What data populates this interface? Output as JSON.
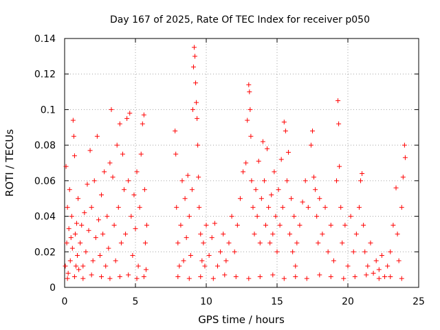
{
  "chart_data": {
    "type": "scatter",
    "title": "Day 167 of 2025, Rate Of TEC Index for receiver p050",
    "xlabel": "GPS time / hours",
    "ylabel": "ROTI / TECUs",
    "xlim": [
      0,
      25
    ],
    "ylim": [
      0,
      0.14
    ],
    "xticks": [
      0,
      5,
      10,
      15,
      20,
      25
    ],
    "xtick_labels": [
      "0",
      "5",
      "10",
      "15",
      "20",
      "25"
    ],
    "yticks": [
      0,
      0.02,
      0.04,
      0.06,
      0.08,
      0.1,
      0.12,
      0.14
    ],
    "ytick_labels": [
      "0",
      "0.02",
      "0.04",
      "0.06",
      "0.08",
      "0.1",
      "0.12",
      "0.14"
    ],
    "grid": true,
    "legend": "none",
    "marker": "+",
    "series": [
      {
        "color": "#ff0000",
        "points": [
          [
            0.05,
            0.012
          ],
          [
            0.1,
            0.068
          ],
          [
            0.15,
            0.025
          ],
          [
            0.2,
            0.045
          ],
          [
            0.25,
            0.008
          ],
          [
            0.3,
            0.033
          ],
          [
            0.35,
            0.055
          ],
          [
            0.4,
            0.015
          ],
          [
            0.45,
            0.028
          ],
          [
            0.5,
            0.04
          ],
          [
            0.55,
            0.022
          ],
          [
            0.6,
            0.094
          ],
          [
            0.65,
            0.085
          ],
          [
            0.7,
            0.074
          ],
          [
            0.75,
            0.03
          ],
          [
            0.8,
            0.012
          ],
          [
            0.85,
            0.036
          ],
          [
            0.9,
            0.018
          ],
          [
            0.95,
            0.05
          ],
          [
            1.0,
            0.01
          ],
          [
            1.1,
            0.025
          ],
          [
            1.2,
            0.035
          ],
          [
            1.3,
            0.012
          ],
          [
            1.4,
            0.042
          ],
          [
            1.5,
            0.02
          ],
          [
            1.6,
            0.058
          ],
          [
            1.7,
            0.032
          ],
          [
            1.8,
            0.077
          ],
          [
            1.9,
            0.045
          ],
          [
            2.0,
            0.015
          ],
          [
            2.1,
            0.06
          ],
          [
            2.2,
            0.028
          ],
          [
            2.3,
            0.085
          ],
          [
            2.4,
            0.038
          ],
          [
            2.5,
            0.018
          ],
          [
            2.6,
            0.052
          ],
          [
            2.7,
            0.03
          ],
          [
            2.8,
            0.065
          ],
          [
            2.9,
            0.012
          ],
          [
            3.0,
            0.04
          ],
          [
            3.1,
            0.022
          ],
          [
            3.2,
            0.07
          ],
          [
            3.3,
            0.1
          ],
          [
            3.4,
            0.062
          ],
          [
            3.5,
            0.035
          ],
          [
            3.6,
            0.015
          ],
          [
            3.7,
            0.08
          ],
          [
            3.8,
            0.045
          ],
          [
            3.9,
            0.092
          ],
          [
            4.0,
            0.025
          ],
          [
            4.1,
            0.075
          ],
          [
            4.2,
            0.055
          ],
          [
            4.3,
            0.03
          ],
          [
            4.4,
            0.095
          ],
          [
            4.5,
            0.06
          ],
          [
            4.6,
            0.098
          ],
          [
            4.7,
            0.04
          ],
          [
            4.8,
            0.018
          ],
          [
            4.9,
            0.052
          ],
          [
            5.0,
            0.033
          ],
          [
            5.1,
            0.065
          ],
          [
            5.2,
            0.012
          ],
          [
            5.3,
            0.045
          ],
          [
            5.4,
            0.075
          ],
          [
            5.5,
            0.092
          ],
          [
            5.6,
            0.097
          ],
          [
            5.65,
            0.055
          ],
          [
            5.7,
            0.025
          ],
          [
            5.75,
            0.01
          ],
          [
            5.8,
            0.035
          ],
          [
            0.2,
            0.005
          ],
          [
            0.7,
            0.006
          ],
          [
            1.3,
            0.005
          ],
          [
            1.9,
            0.007
          ],
          [
            2.6,
            0.006
          ],
          [
            3.2,
            0.005
          ],
          [
            3.9,
            0.006
          ],
          [
            4.5,
            0.007
          ],
          [
            5.1,
            0.005
          ],
          [
            5.6,
            0.006
          ],
          [
            7.8,
            0.088
          ],
          [
            7.85,
            0.075
          ],
          [
            7.9,
            0.045
          ],
          [
            8.0,
            0.025
          ],
          [
            8.1,
            0.012
          ],
          [
            8.2,
            0.035
          ],
          [
            8.3,
            0.06
          ],
          [
            8.4,
            0.015
          ],
          [
            8.5,
            0.05
          ],
          [
            8.6,
            0.028
          ],
          [
            8.7,
            0.063
          ],
          [
            8.8,
            0.04
          ],
          [
            8.9,
            0.018
          ],
          [
            9.0,
            0.055
          ],
          [
            9.05,
            0.1
          ],
          [
            9.1,
            0.124
          ],
          [
            9.15,
            0.135
          ],
          [
            9.2,
            0.13
          ],
          [
            9.25,
            0.115
          ],
          [
            9.3,
            0.104
          ],
          [
            9.35,
            0.095
          ],
          [
            9.4,
            0.08
          ],
          [
            9.45,
            0.062
          ],
          [
            9.5,
            0.045
          ],
          [
            9.6,
            0.03
          ],
          [
            9.7,
            0.015
          ],
          [
            9.8,
            0.025
          ],
          [
            9.9,
            0.012
          ],
          [
            10.0,
            0.035
          ],
          [
            10.2,
            0.018
          ],
          [
            10.4,
            0.028
          ],
          [
            10.6,
            0.036
          ],
          [
            10.8,
            0.012
          ],
          [
            11.0,
            0.02
          ],
          [
            11.2,
            0.03
          ],
          [
            11.4,
            0.015
          ],
          [
            11.6,
            0.025
          ],
          [
            11.8,
            0.04
          ],
          [
            12.0,
            0.02
          ],
          [
            12.2,
            0.035
          ],
          [
            12.4,
            0.05
          ],
          [
            12.6,
            0.065
          ],
          [
            12.8,
            0.07
          ],
          [
            12.9,
            0.094
          ],
          [
            13.0,
            0.114
          ],
          [
            13.05,
            0.11
          ],
          [
            13.1,
            0.1
          ],
          [
            13.15,
            0.085
          ],
          [
            13.2,
            0.06
          ],
          [
            13.3,
            0.045
          ],
          [
            13.4,
            0.03
          ],
          [
            13.5,
            0.055
          ],
          [
            13.6,
            0.04
          ],
          [
            13.7,
            0.071
          ],
          [
            13.8,
            0.025
          ],
          [
            13.9,
            0.05
          ],
          [
            14.0,
            0.082
          ],
          [
            14.1,
            0.06
          ],
          [
            14.2,
            0.035
          ],
          [
            14.3,
            0.078
          ],
          [
            14.4,
            0.045
          ],
          [
            14.5,
            0.025
          ],
          [
            14.6,
            0.052
          ],
          [
            14.7,
            0.03
          ],
          [
            14.8,
            0.065
          ],
          [
            14.9,
            0.04
          ],
          [
            15.0,
            0.02
          ],
          [
            15.1,
            0.055
          ],
          [
            15.2,
            0.035
          ],
          [
            15.3,
            0.072
          ],
          [
            15.4,
            0.045
          ],
          [
            15.5,
            0.093
          ],
          [
            15.6,
            0.088
          ],
          [
            15.7,
            0.06
          ],
          [
            15.8,
            0.076
          ],
          [
            15.9,
            0.03
          ],
          [
            16.0,
            0.05
          ],
          [
            16.1,
            0.02
          ],
          [
            16.2,
            0.04
          ],
          [
            16.3,
            0.012
          ],
          [
            16.4,
            0.025
          ],
          [
            16.6,
            0.035
          ],
          [
            16.8,
            0.048
          ],
          [
            17.0,
            0.06
          ],
          [
            17.2,
            0.045
          ],
          [
            17.4,
            0.08
          ],
          [
            17.5,
            0.088
          ],
          [
            17.6,
            0.062
          ],
          [
            17.7,
            0.055
          ],
          [
            17.8,
            0.04
          ],
          [
            17.9,
            0.025
          ],
          [
            18.0,
            0.05
          ],
          [
            18.2,
            0.03
          ],
          [
            18.4,
            0.045
          ],
          [
            18.6,
            0.02
          ],
          [
            18.8,
            0.035
          ],
          [
            19.0,
            0.015
          ],
          [
            19.2,
            0.06
          ],
          [
            19.3,
            0.105
          ],
          [
            19.35,
            0.092
          ],
          [
            19.4,
            0.068
          ],
          [
            19.5,
            0.045
          ],
          [
            19.6,
            0.025
          ],
          [
            19.8,
            0.035
          ],
          [
            20.0,
            0.012
          ],
          [
            20.2,
            0.04
          ],
          [
            20.4,
            0.02
          ],
          [
            20.6,
            0.03
          ],
          [
            20.8,
            0.045
          ],
          [
            20.9,
            0.06
          ],
          [
            21.0,
            0.064
          ],
          [
            21.1,
            0.035
          ],
          [
            21.2,
            0.02
          ],
          [
            21.4,
            0.012
          ],
          [
            21.6,
            0.025
          ],
          [
            21.8,
            0.008
          ],
          [
            22.0,
            0.015
          ],
          [
            22.2,
            0.01
          ],
          [
            22.4,
            0.018
          ],
          [
            22.6,
            0.006
          ],
          [
            22.8,
            0.012
          ],
          [
            23.0,
            0.02
          ],
          [
            23.2,
            0.035
          ],
          [
            23.4,
            0.056
          ],
          [
            23.5,
            0.03
          ],
          [
            23.6,
            0.015
          ],
          [
            23.8,
            0.045
          ],
          [
            23.9,
            0.062
          ],
          [
            24.0,
            0.08
          ],
          [
            24.05,
            0.073
          ],
          [
            8.0,
            0.006
          ],
          [
            8.8,
            0.005
          ],
          [
            9.6,
            0.006
          ],
          [
            10.5,
            0.005
          ],
          [
            11.3,
            0.007
          ],
          [
            12.1,
            0.006
          ],
          [
            13.0,
            0.005
          ],
          [
            13.8,
            0.006
          ],
          [
            14.7,
            0.007
          ],
          [
            15.5,
            0.005
          ],
          [
            16.3,
            0.006
          ],
          [
            17.1,
            0.005
          ],
          [
            18.0,
            0.007
          ],
          [
            18.8,
            0.006
          ],
          [
            19.7,
            0.005
          ],
          [
            20.5,
            0.006
          ],
          [
            21.3,
            0.007
          ],
          [
            22.2,
            0.005
          ],
          [
            23.0,
            0.006
          ],
          [
            23.8,
            0.005
          ]
        ]
      }
    ]
  }
}
